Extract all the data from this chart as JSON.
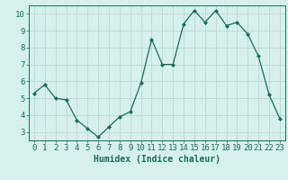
{
  "x": [
    0,
    1,
    2,
    3,
    4,
    5,
    6,
    7,
    8,
    9,
    10,
    11,
    12,
    13,
    14,
    15,
    16,
    17,
    18,
    19,
    20,
    21,
    22,
    23
  ],
  "y": [
    5.3,
    5.8,
    5.0,
    4.9,
    3.7,
    3.2,
    2.7,
    3.3,
    3.9,
    4.2,
    5.9,
    8.5,
    7.0,
    7.0,
    9.4,
    10.2,
    9.5,
    10.2,
    9.3,
    9.5,
    8.8,
    7.5,
    5.2,
    3.8
  ],
  "line_color": "#1a6b5a",
  "marker": "D",
  "marker_size": 2,
  "bg_color": "#d6f0ee",
  "grid_color": "#b8d8d4",
  "axis_color": "#1a6b5a",
  "xlabel": "Humidex (Indice chaleur)",
  "xlim": [
    -0.5,
    23.5
  ],
  "ylim": [
    2.5,
    10.5
  ],
  "yticks": [
    3,
    4,
    5,
    6,
    7,
    8,
    9,
    10
  ],
  "xticks": [
    0,
    1,
    2,
    3,
    4,
    5,
    6,
    7,
    8,
    9,
    10,
    11,
    12,
    13,
    14,
    15,
    16,
    17,
    18,
    19,
    20,
    21,
    22,
    23
  ],
  "xlabel_fontsize": 7,
  "tick_fontsize": 6.5
}
